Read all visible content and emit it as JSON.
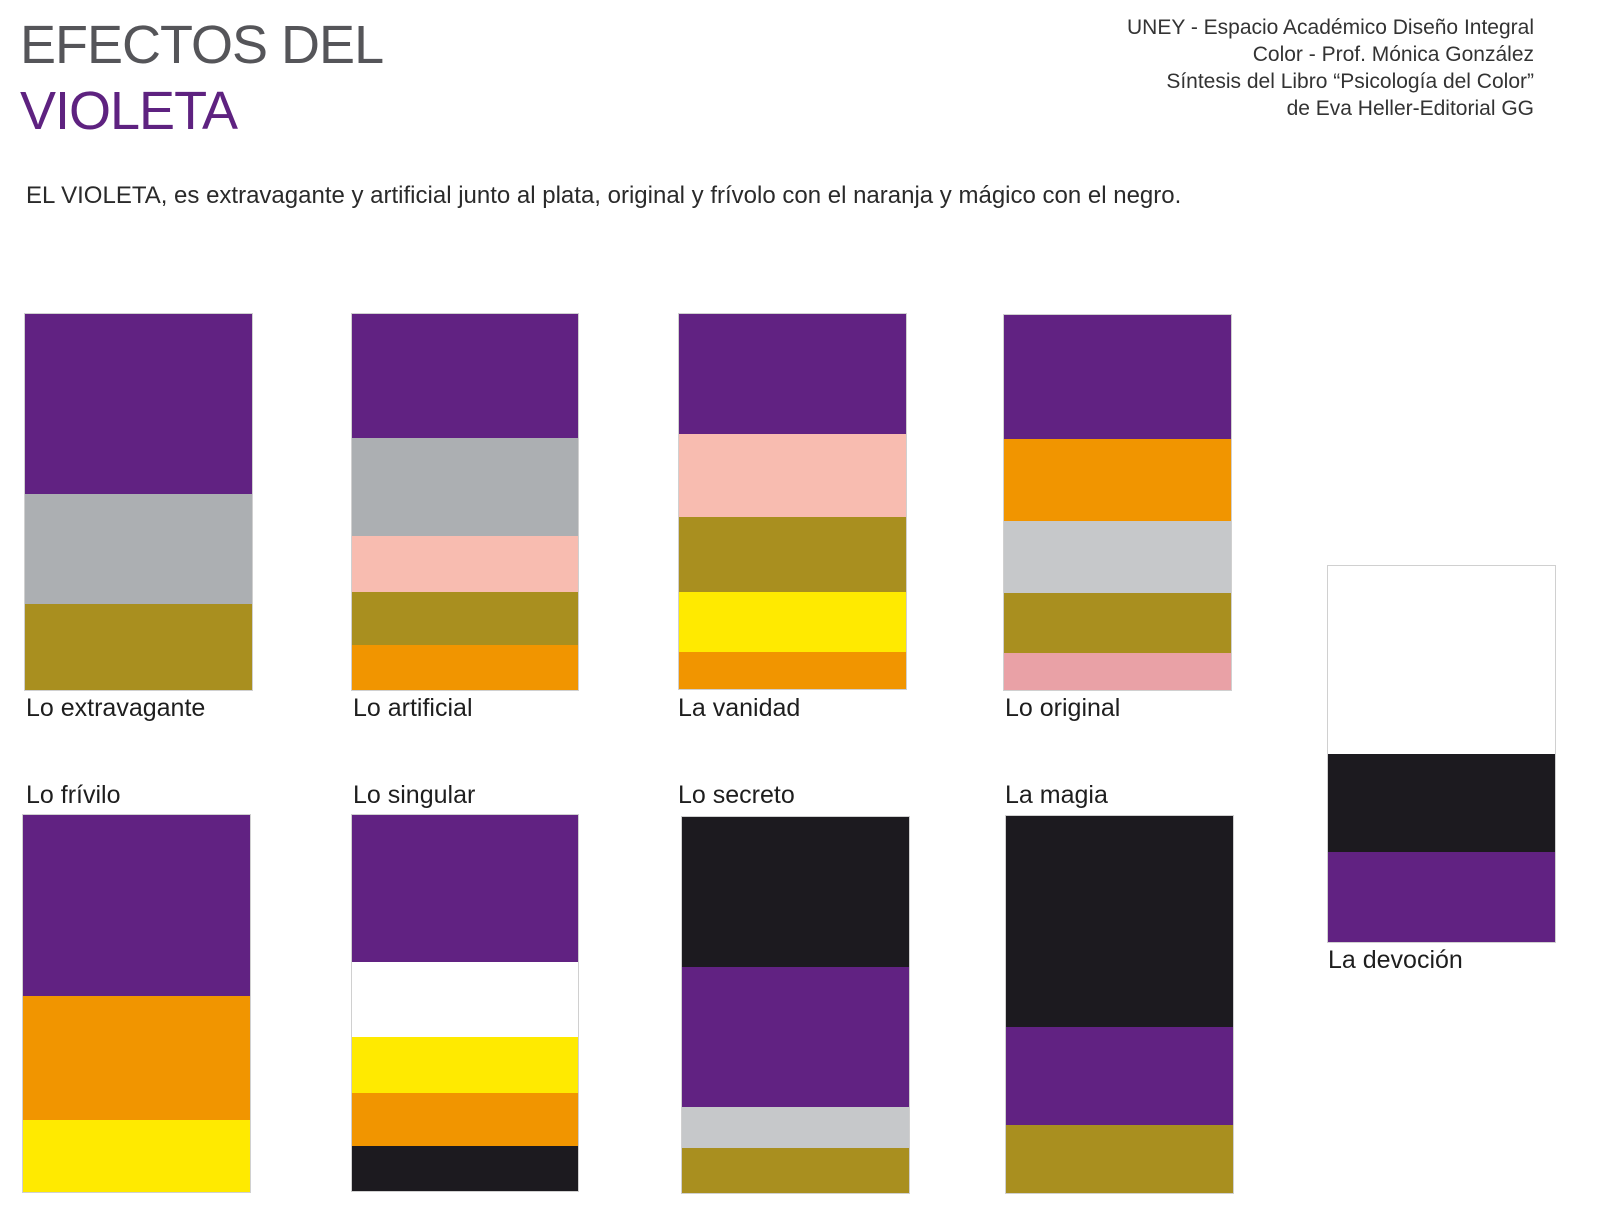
{
  "title_line1": "EFECTOS DEL",
  "title_line2": "VIOLETA",
  "credits": [
    "UNEY - Espacio Académico Diseño Integral",
    "Color -  Prof. Mónica González",
    "Síntesis del Libro “Psicología del Color”",
    "de Eva Heller-Editorial GG"
  ],
  "intro": "EL VIOLETA, es extravagante y artificial junto al plata, original y frívolo con el naranja y mágico con el negro.",
  "colors": {
    "violeta": "#612282",
    "plata": "#acafb2",
    "plata_claro": "#c6c8ca",
    "oro": "#a98f1f",
    "rosa": "#f8bcb0",
    "rosa_palido": "#e9a1a6",
    "naranja": "#f19500",
    "amarillo": "#ffea00",
    "negro": "#1c1a1f",
    "blanco": "#ffffff"
  },
  "swatches": [
    {
      "label": "Lo extravagante",
      "bands": [
        [
          "violeta",
          48
        ],
        [
          "plata",
          29
        ],
        [
          "oro",
          23
        ]
      ]
    },
    {
      "label": "Lo artificial",
      "bands": [
        [
          "violeta",
          33
        ],
        [
          "plata",
          26
        ],
        [
          "rosa",
          15
        ],
        [
          "oro",
          14
        ],
        [
          "naranja",
          12
        ]
      ]
    },
    {
      "label": "La vanidad",
      "bands": [
        [
          "violeta",
          32
        ],
        [
          "rosa",
          22
        ],
        [
          "oro",
          20
        ],
        [
          "amarillo",
          16
        ],
        [
          "naranja",
          10
        ]
      ]
    },
    {
      "label": "Lo original",
      "bands": [
        [
          "violeta",
          33
        ],
        [
          "naranja",
          22
        ],
        [
          "plata_claro",
          19
        ],
        [
          "oro",
          16
        ],
        [
          "rosa_palido",
          10
        ]
      ]
    },
    {
      "label": "Lo frívilo",
      "bands": [
        [
          "violeta",
          48
        ],
        [
          "naranja",
          33
        ],
        [
          "amarillo",
          19
        ]
      ]
    },
    {
      "label": "Lo singular",
      "bands": [
        [
          "violeta",
          39
        ],
        [
          "blanco",
          20
        ],
        [
          "amarillo",
          15
        ],
        [
          "naranja",
          14
        ],
        [
          "negro",
          12
        ]
      ]
    },
    {
      "label": "Lo secreto",
      "bands": [
        [
          "negro",
          40
        ],
        [
          "violeta",
          37
        ],
        [
          "plata_claro",
          11
        ],
        [
          "oro",
          12
        ]
      ]
    },
    {
      "label": "La magia",
      "bands": [
        [
          "negro",
          56
        ],
        [
          "violeta",
          26
        ],
        [
          "oro",
          18
        ]
      ]
    },
    {
      "label": "La devoción",
      "bands": [
        [
          "blanco",
          50
        ],
        [
          "negro",
          26
        ],
        [
          "violeta",
          24
        ]
      ]
    }
  ]
}
